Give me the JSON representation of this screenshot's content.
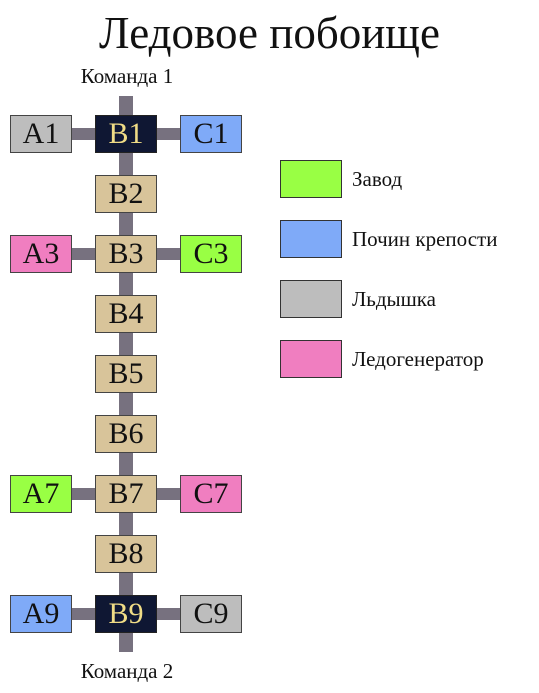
{
  "title": "Ледовое побоище",
  "team_top": "Команда 1",
  "team_bottom": "Команда 2",
  "colors": {
    "plain": "#d8c49a",
    "base": "#0f1733",
    "zavod": "#99ff44",
    "pochin": "#7faaf8",
    "ldyshka": "#bdbdbd",
    "ledogen": "#f07ec0",
    "connector": "#77717f"
  },
  "rows": [
    {
      "label": "B1",
      "type": "base",
      "left": {
        "label": "A1",
        "type": "ldyshka"
      },
      "right": {
        "label": "C1",
        "type": "pochin"
      }
    },
    {
      "label": "B2",
      "type": "plain"
    },
    {
      "label": "B3",
      "type": "plain",
      "left": {
        "label": "A3",
        "type": "ledogen"
      },
      "right": {
        "label": "C3",
        "type": "zavod"
      }
    },
    {
      "label": "B4",
      "type": "plain"
    },
    {
      "label": "B5",
      "type": "plain"
    },
    {
      "label": "B6",
      "type": "plain"
    },
    {
      "label": "B7",
      "type": "plain",
      "left": {
        "label": "A7",
        "type": "zavod"
      },
      "right": {
        "label": "C7",
        "type": "ledogen"
      }
    },
    {
      "label": "B8",
      "type": "plain"
    },
    {
      "label": "B9",
      "type": "base",
      "left": {
        "label": "A9",
        "type": "pochin"
      },
      "right": {
        "label": "C9",
        "type": "ldyshka"
      }
    }
  ],
  "legend": [
    {
      "type": "zavod",
      "label": "Завод"
    },
    {
      "type": "pochin",
      "label": "Почин крепости"
    },
    {
      "type": "ldyshka",
      "label": "Льдышка"
    },
    {
      "type": "ledogen",
      "label": "Ледогенератор"
    }
  ]
}
